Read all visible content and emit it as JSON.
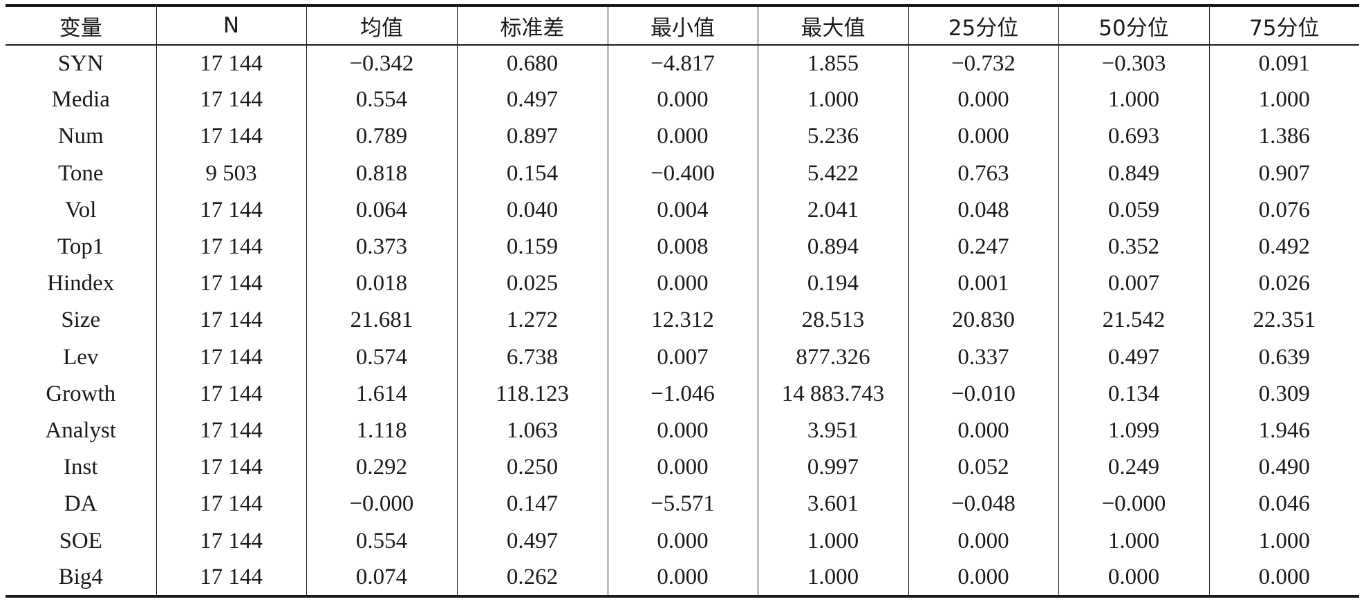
{
  "table": {
    "headers": [
      "变量",
      "N",
      "均值",
      "标准差",
      "最小值",
      "最大值",
      "25分位",
      "50分位",
      "75分位"
    ],
    "rows": [
      [
        "SYN",
        "17 144",
        "−0.342",
        "0.680",
        "−4.817",
        "1.855",
        "−0.732",
        "−0.303",
        "0.091"
      ],
      [
        "Media",
        "17 144",
        "0.554",
        "0.497",
        "0.000",
        "1.000",
        "0.000",
        "1.000",
        "1.000"
      ],
      [
        "Num",
        "17 144",
        "0.789",
        "0.897",
        "0.000",
        "5.236",
        "0.000",
        "0.693",
        "1.386"
      ],
      [
        "Tone",
        "9 503",
        "0.818",
        "0.154",
        "−0.400",
        "5.422",
        "0.763",
        "0.849",
        "0.907"
      ],
      [
        "Vol",
        "17 144",
        "0.064",
        "0.040",
        "0.004",
        "2.041",
        "0.048",
        "0.059",
        "0.076"
      ],
      [
        "Top1",
        "17 144",
        "0.373",
        "0.159",
        "0.008",
        "0.894",
        "0.247",
        "0.352",
        "0.492"
      ],
      [
        "Hindex",
        "17 144",
        "0.018",
        "0.025",
        "0.000",
        "0.194",
        "0.001",
        "0.007",
        "0.026"
      ],
      [
        "Size",
        "17 144",
        "21.681",
        "1.272",
        "12.312",
        "28.513",
        "20.830",
        "21.542",
        "22.351"
      ],
      [
        "Lev",
        "17 144",
        "0.574",
        "6.738",
        "0.007",
        "877.326",
        "0.337",
        "0.497",
        "0.639"
      ],
      [
        "Growth",
        "17 144",
        "1.614",
        "118.123",
        "−1.046",
        "14 883.743",
        "−0.010",
        "0.134",
        "0.309"
      ],
      [
        "Analyst",
        "17 144",
        "1.118",
        "1.063",
        "0.000",
        "3.951",
        "0.000",
        "1.099",
        "1.946"
      ],
      [
        "Inst",
        "17 144",
        "0.292",
        "0.250",
        "0.000",
        "0.997",
        "0.052",
        "0.249",
        "0.490"
      ],
      [
        "DA",
        "17 144",
        "−0.000",
        "0.147",
        "−5.571",
        "3.601",
        "−0.048",
        "−0.000",
        "0.046"
      ],
      [
        "SOE",
        "17 144",
        "0.554",
        "0.497",
        "0.000",
        "1.000",
        "0.000",
        "1.000",
        "1.000"
      ],
      [
        "Big4",
        "17 144",
        "0.074",
        "0.262",
        "0.000",
        "1.000",
        "0.000",
        "0.000",
        "0.000"
      ]
    ]
  }
}
